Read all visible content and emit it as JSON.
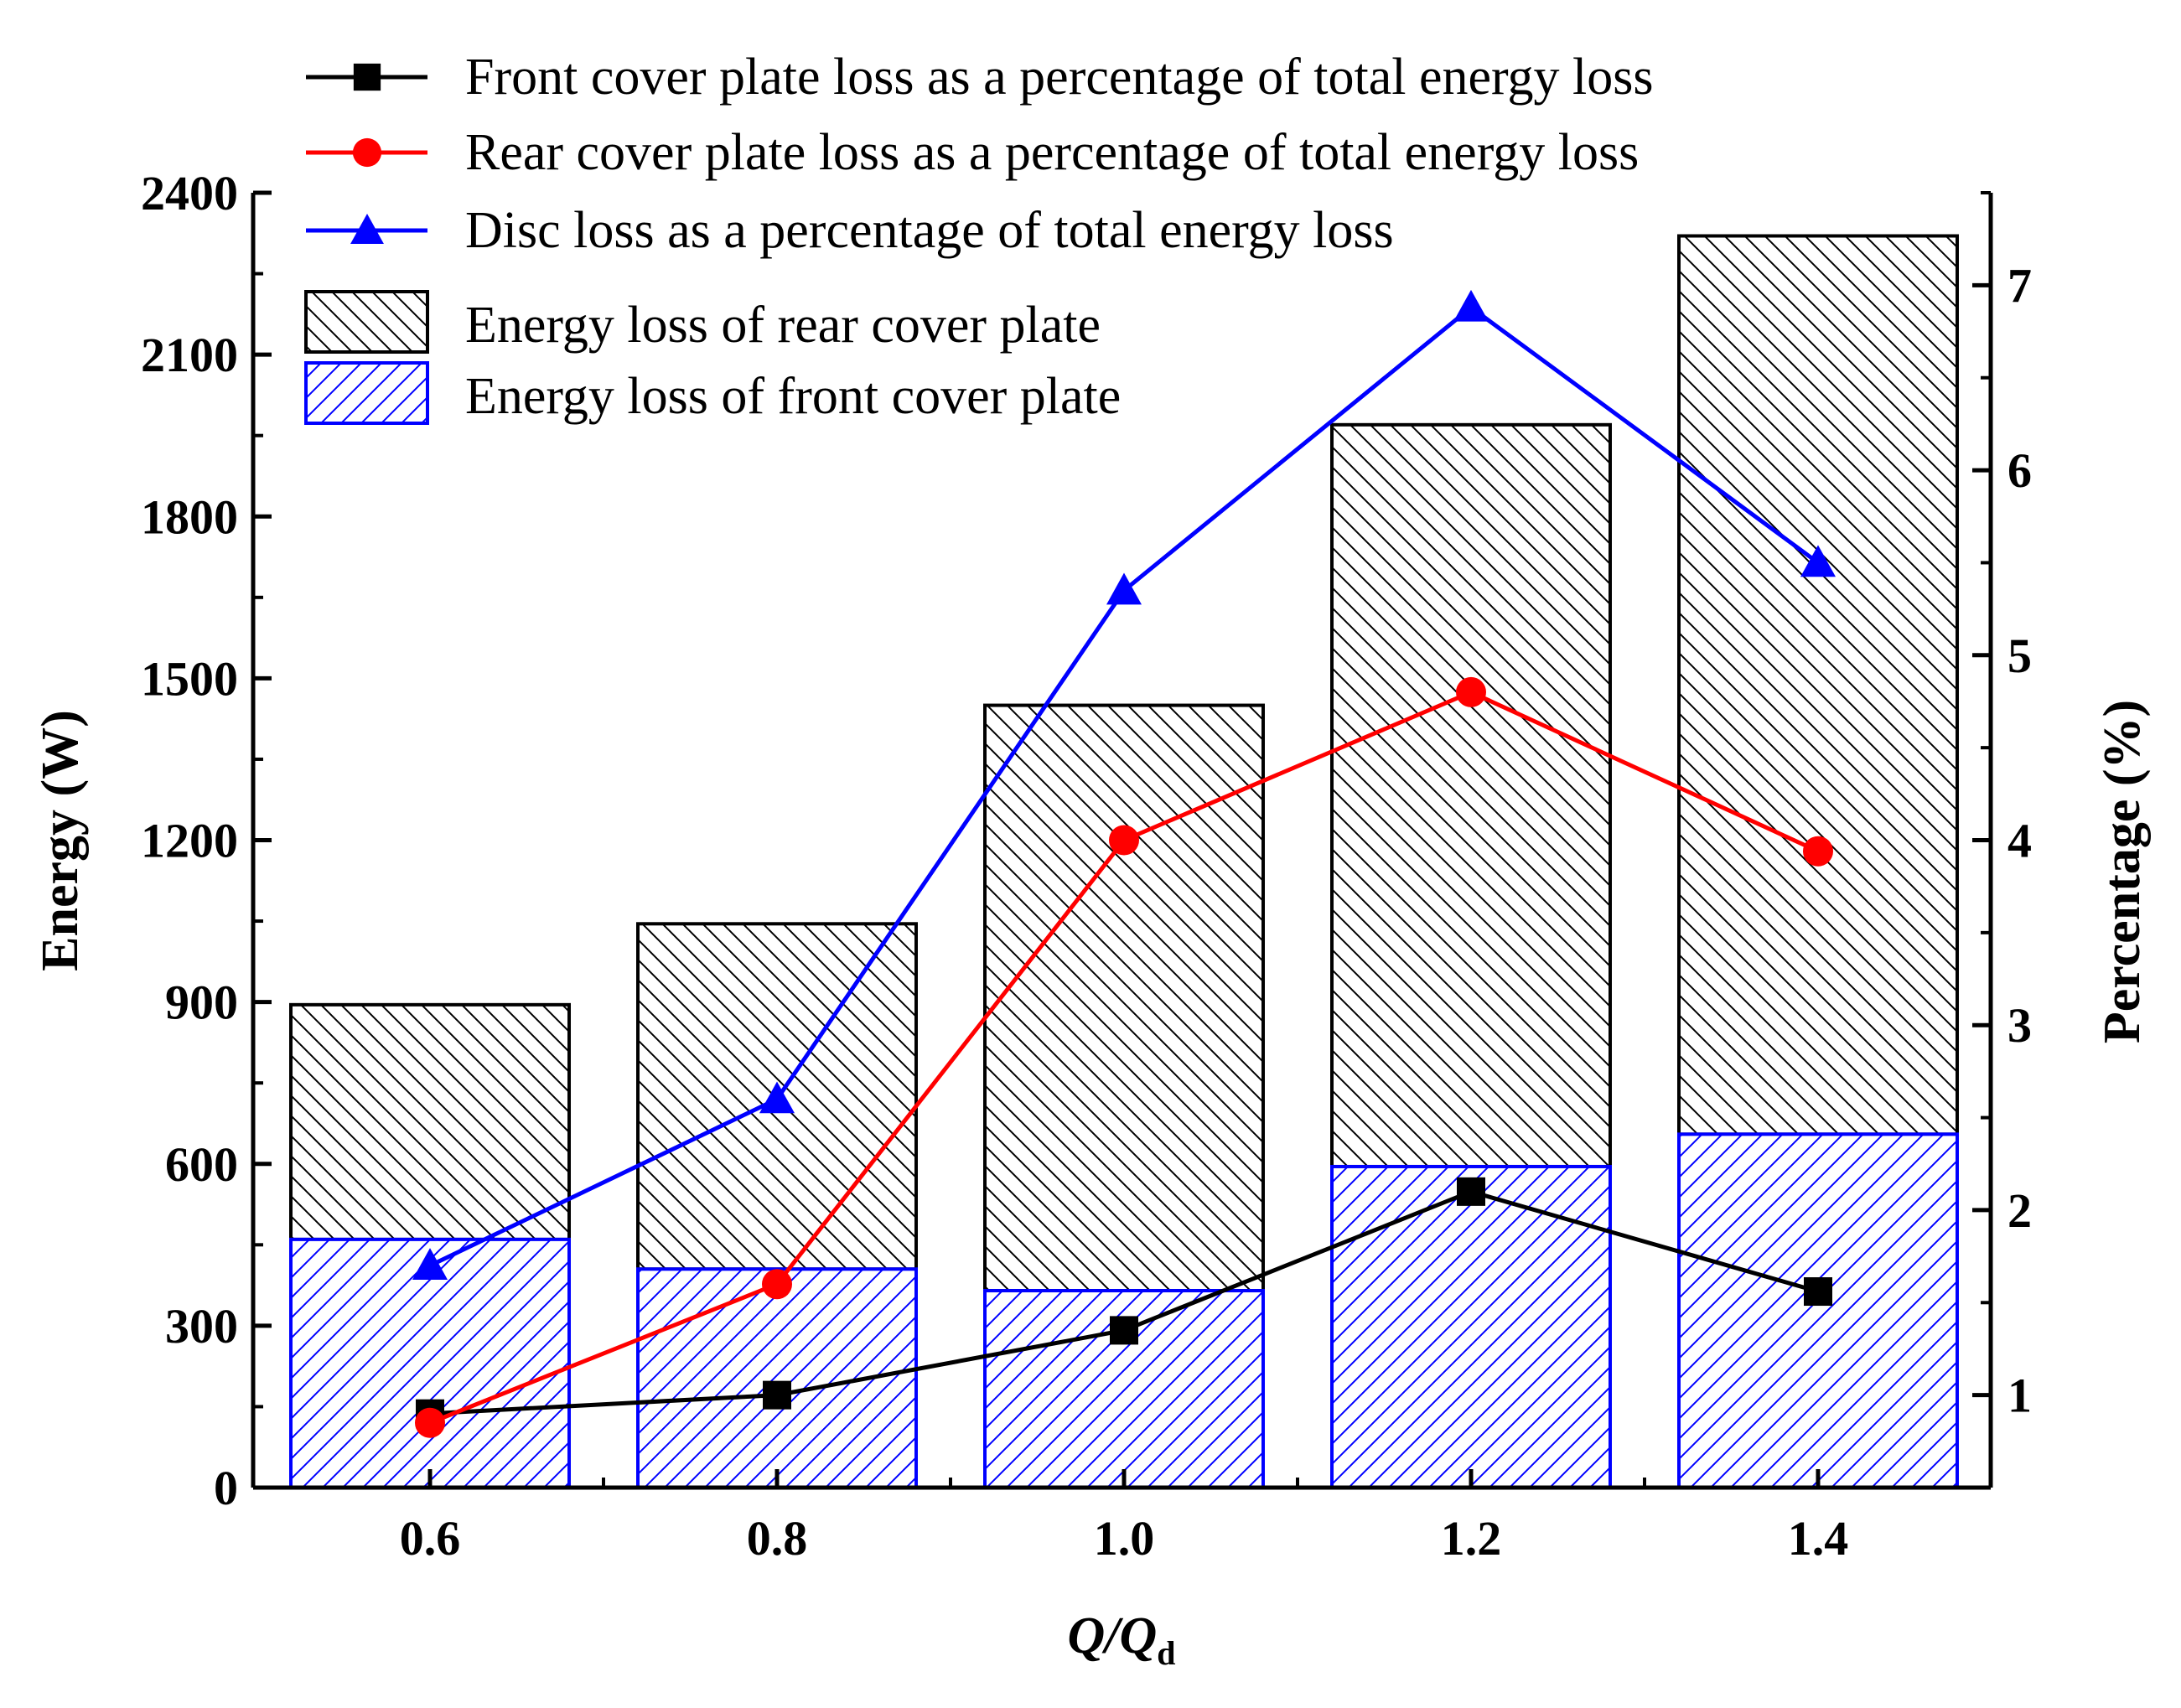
{
  "chart_data": {
    "type": "bar",
    "categories": [
      "0.6",
      "0.8",
      "1.0",
      "1.2",
      "1.4"
    ],
    "bar_series": [
      {
        "name": "Energy loss of front cover plate",
        "values": [
          460,
          405,
          365,
          595,
          655
        ],
        "color": "#0000ff",
        "hatch": "forward"
      },
      {
        "name": "Energy loss of rear cover plate",
        "values": [
          895,
          1045,
          1450,
          1970,
          2320
        ],
        "color": "#000000",
        "hatch": "back"
      }
    ],
    "line_series": [
      {
        "name": "Front cover plate loss as a percentage of total energy loss",
        "values": [
          0.9,
          1.0,
          1.35,
          2.1,
          1.56
        ],
        "color": "#000000",
        "marker": "square"
      },
      {
        "name": "Rear cover plate loss as a percentage of total energy loss",
        "values": [
          0.85,
          1.6,
          4.0,
          4.8,
          3.94
        ],
        "color": "#ff0000",
        "marker": "circle"
      },
      {
        "name": "Disc loss as a percentage of total energy loss",
        "values": [
          1.7,
          2.6,
          5.35,
          6.88,
          5.5
        ],
        "color": "#0000ff",
        "marker": "triangle"
      }
    ],
    "xlabel": {
      "main": "Q/Q",
      "sub": "d"
    },
    "ylabel": "Energy (W)",
    "y2label": "Percentage (%)",
    "ylim": [
      0,
      2400
    ],
    "y2lim": [
      0.5,
      7.5
    ],
    "yticks": [
      "0",
      "300",
      "600",
      "900",
      "1200",
      "1500",
      "1800",
      "2100",
      "2400"
    ],
    "y2ticks": [
      "1",
      "2",
      "3",
      "4",
      "5",
      "6",
      "7"
    ],
    "legend_order": [
      "Front cover plate loss as a percentage of total energy loss",
      "Rear cover plate loss as a percentage of total energy loss",
      "Disc loss as a percentage of total energy loss",
      "Energy loss of rear cover plate",
      "Energy loss of front cover plate"
    ],
    "legend_position": "top-left",
    "grid": false
  }
}
